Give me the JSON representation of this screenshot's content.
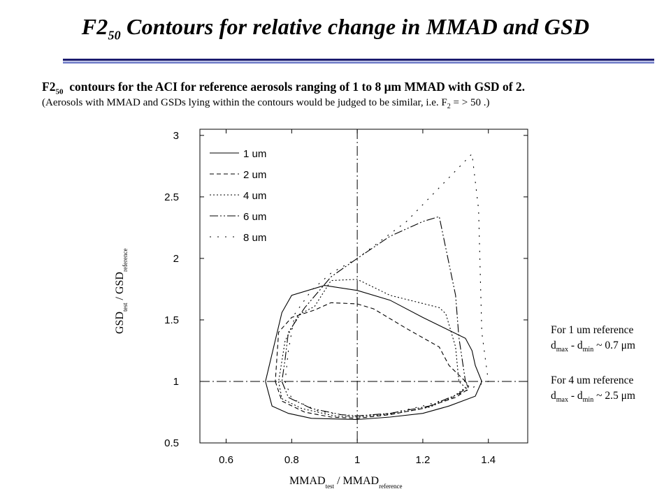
{
  "slide": {
    "title_main": "F2",
    "title_sub": "50",
    "title_rest": " Contours for relative change in MMAD and GSD",
    "desc1_main": "F2",
    "desc1_sub": "50",
    "desc1_rest": "  contours for the ACI for reference aerosols ranging of 1 to 8 μm MMAD with GSD of 2.",
    "desc2_pre": "(Aerosols with MMAD and GSDs lying within the contours would be judged to be similar, i.e. F",
    "desc2_sub": "2",
    "desc2_post": " = > 50 .)"
  },
  "note": {
    "line1": "For 1 um reference",
    "line2_d1": "d",
    "line2_sub1": "max",
    "line2_mid": " - d",
    "line2_sub2": "min",
    "line2_val1": " ~ 0.7 μm",
    "line3": "For 4 um reference",
    "line4_d1": "d",
    "line4_sub1": "max",
    "line4_mid": " - d",
    "line4_sub2": "min",
    "line4_val2": " ~ 2.5 μm"
  },
  "chart_data": {
    "type": "line",
    "xlabel_main": "MMAD",
    "xlabel_sub1": "test",
    "xlabel_sep": " / MMAD",
    "xlabel_sub2": "reference",
    "ylabel_main": "GSD",
    "ylabel_sub1": "test",
    "ylabel_sep": " / GSD",
    "ylabel_sub2": "reference",
    "xlim": [
      0.52,
      1.52
    ],
    "ylim": [
      0.5,
      3.05
    ],
    "x_ticks": [
      "0.6",
      "0.8",
      "1",
      "1.2",
      "1.4"
    ],
    "y_ticks": [
      "0.5",
      "1",
      "1.5",
      "2",
      "2.5",
      "3"
    ],
    "reference_lines": {
      "x": 1,
      "y": 1
    },
    "legend_position": "top-left",
    "series": [
      {
        "name": "1 um",
        "dash": "",
        "points": [
          [
            0.72,
            1.0
          ],
          [
            0.74,
            0.8
          ],
          [
            0.79,
            0.74
          ],
          [
            0.86,
            0.7
          ],
          [
            1.0,
            0.69
          ],
          [
            1.1,
            0.71
          ],
          [
            1.2,
            0.74
          ],
          [
            1.28,
            0.8
          ],
          [
            1.36,
            0.88
          ],
          [
            1.38,
            1.0
          ],
          [
            1.36,
            1.13
          ],
          [
            1.35,
            1.25
          ],
          [
            1.33,
            1.35
          ],
          [
            1.2,
            1.52
          ],
          [
            1.1,
            1.66
          ],
          [
            1.0,
            1.74
          ],
          [
            0.9,
            1.78
          ],
          [
            0.8,
            1.7
          ],
          [
            0.77,
            1.56
          ],
          [
            0.72,
            1.0
          ]
        ]
      },
      {
        "name": "2 um",
        "dash": "6,4",
        "points": [
          [
            0.75,
            1.0
          ],
          [
            0.77,
            0.84
          ],
          [
            0.84,
            0.75
          ],
          [
            0.92,
            0.71
          ],
          [
            1.0,
            0.7
          ],
          [
            1.1,
            0.73
          ],
          [
            1.2,
            0.78
          ],
          [
            1.3,
            0.87
          ],
          [
            1.34,
            0.94
          ],
          [
            1.33,
            1.0
          ],
          [
            1.28,
            1.13
          ],
          [
            1.25,
            1.28
          ],
          [
            1.15,
            1.43
          ],
          [
            1.05,
            1.59
          ],
          [
            1.0,
            1.63
          ],
          [
            0.92,
            1.64
          ],
          [
            0.87,
            1.58
          ],
          [
            0.8,
            1.52
          ],
          [
            0.76,
            1.4
          ],
          [
            0.75,
            1.0
          ]
        ]
      },
      {
        "name": "4 um",
        "dash": "2,3",
        "points": [
          [
            0.76,
            1.0
          ],
          [
            0.77,
            0.86
          ],
          [
            0.83,
            0.78
          ],
          [
            0.93,
            0.72
          ],
          [
            1.0,
            0.71
          ],
          [
            1.12,
            0.74
          ],
          [
            1.22,
            0.79
          ],
          [
            1.29,
            0.87
          ],
          [
            1.33,
            0.95
          ],
          [
            1.31,
            1.0
          ],
          [
            1.3,
            1.28
          ],
          [
            1.27,
            1.55
          ],
          [
            1.25,
            1.6
          ],
          [
            1.1,
            1.7
          ],
          [
            1.0,
            1.83
          ],
          [
            0.92,
            1.82
          ],
          [
            0.87,
            1.61
          ],
          [
            0.82,
            1.54
          ],
          [
            0.78,
            1.33
          ],
          [
            0.76,
            1.0
          ]
        ]
      },
      {
        "name": "6 um",
        "dash": "12,3,2,3,2,3",
        "points": [
          [
            0.77,
            1.0
          ],
          [
            0.79,
            0.87
          ],
          [
            0.86,
            0.78
          ],
          [
            0.95,
            0.73
          ],
          [
            1.0,
            0.72
          ],
          [
            1.1,
            0.74
          ],
          [
            1.22,
            0.8
          ],
          [
            1.31,
            0.9
          ],
          [
            1.34,
            0.96
          ],
          [
            1.33,
            1.0
          ],
          [
            1.31,
            1.36
          ],
          [
            1.3,
            1.7
          ],
          [
            1.25,
            2.34
          ],
          [
            1.2,
            2.3
          ],
          [
            1.1,
            2.18
          ],
          [
            1.0,
            2.0
          ],
          [
            0.92,
            1.85
          ],
          [
            0.84,
            1.6
          ],
          [
            0.79,
            1.4
          ],
          [
            0.78,
            1.18
          ],
          [
            0.77,
            1.0
          ]
        ]
      },
      {
        "name": "8 um",
        "dash": "2,9",
        "points": [
          [
            0.78,
            1.0
          ],
          [
            0.8,
            0.86
          ],
          [
            0.88,
            0.76
          ],
          [
            0.97,
            0.72
          ],
          [
            1.0,
            0.72
          ],
          [
            1.1,
            0.74
          ],
          [
            1.2,
            0.8
          ],
          [
            1.29,
            0.87
          ],
          [
            1.36,
            0.96
          ],
          [
            1.4,
            1.0
          ],
          [
            1.38,
            1.4
          ],
          [
            1.37,
            2.4
          ],
          [
            1.35,
            2.85
          ],
          [
            1.27,
            2.63
          ],
          [
            1.15,
            2.3
          ],
          [
            1.0,
            2.0
          ],
          [
            0.92,
            1.88
          ],
          [
            0.86,
            1.74
          ],
          [
            0.81,
            1.55
          ],
          [
            0.79,
            1.25
          ],
          [
            0.78,
            1.0
          ]
        ]
      }
    ]
  }
}
